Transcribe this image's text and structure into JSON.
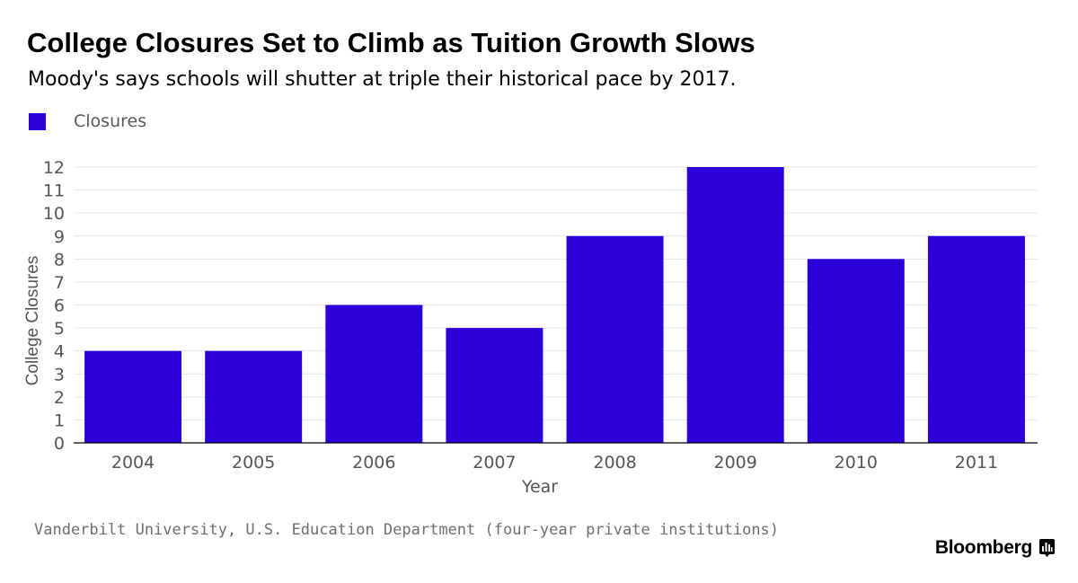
{
  "header": {
    "title": "College Closures Set to Climb as Tuition Growth Slows",
    "subtitle": "Moody's says schools will shutter at triple their historical pace by 2017."
  },
  "footer": {
    "source": "Vanderbilt University, U.S. Education Department (four-year private institutions)",
    "brand": "Bloomberg",
    "brand_icon": "bloomberg-chart-icon"
  },
  "colors": {
    "bar": "#2b00d9",
    "grid": "#e6e6e6",
    "axis": "#000000",
    "tick_text": "#555555"
  },
  "chart_data": {
    "type": "bar",
    "categories": [
      "2004",
      "2005",
      "2006",
      "2007",
      "2008",
      "2009",
      "2010",
      "2011"
    ],
    "series": [
      {
        "name": "Closures",
        "values": [
          4,
          4,
          6,
          5,
          9,
          12,
          8,
          9
        ]
      }
    ],
    "xlabel": "Year",
    "ylabel": "College Closures",
    "ylim": [
      0,
      12
    ],
    "yticks": [
      0,
      1,
      2,
      3,
      4,
      5,
      6,
      7,
      8,
      9,
      10,
      11,
      12
    ],
    "grid": true,
    "legend": "top-left"
  }
}
